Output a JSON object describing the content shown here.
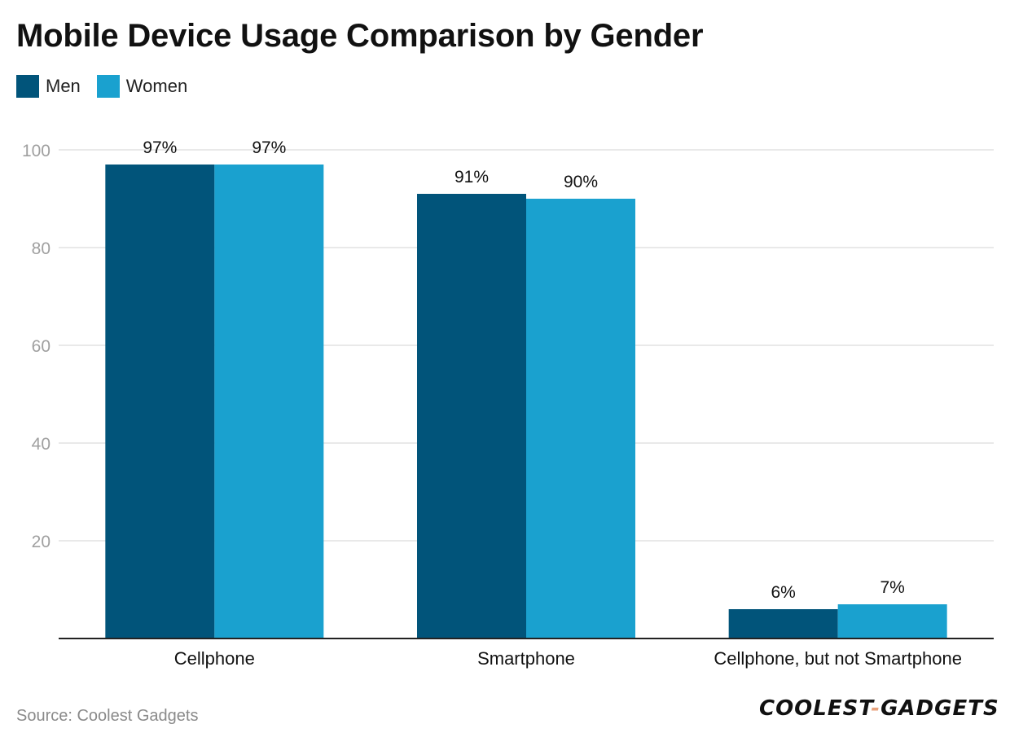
{
  "chart_data": {
    "type": "bar",
    "title": "Mobile Device Usage Comparison by Gender",
    "categories": [
      "Cellphone",
      "Smartphone",
      "Cellphone, but not Smartphone"
    ],
    "series": [
      {
        "name": "Men",
        "values": [
          97,
          91,
          6
        ],
        "labels": [
          "97%",
          "91%",
          "6%"
        ],
        "color": "#01547a"
      },
      {
        "name": "Women",
        "values": [
          97,
          90,
          7
        ],
        "labels": [
          "97%",
          "90%",
          "7%"
        ],
        "color": "#1aa1cf"
      }
    ],
    "ylim": [
      0,
      100
    ],
    "yticks": [
      20,
      40,
      60,
      80,
      100
    ],
    "xlabel": "",
    "ylabel": "",
    "grid": true,
    "legend_position": "top-left"
  },
  "source": "Source: Coolest Gadgets",
  "logo": {
    "left": "COOLEST",
    "dash": "-",
    "right": "GADGETS"
  }
}
